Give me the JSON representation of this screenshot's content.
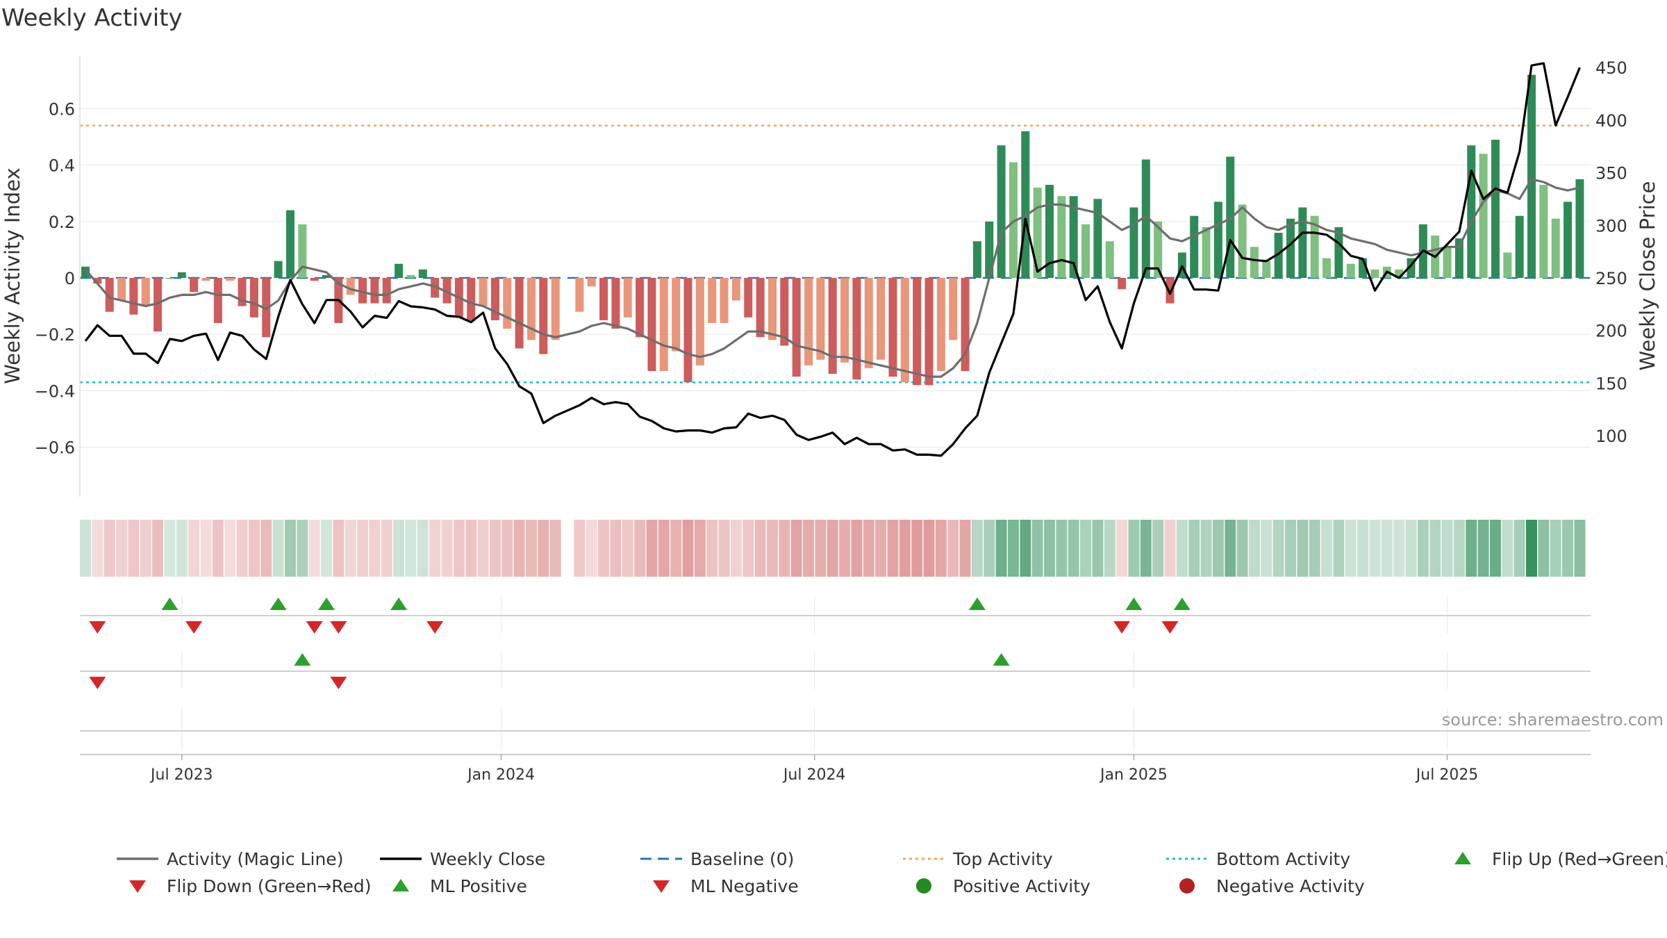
{
  "title": "Weekly Activity",
  "source": "source: sharemaestro.com",
  "colors": {
    "strong_green": "#2e8b57",
    "light_green": "#7fbf7f",
    "strong_red": "#cd5c5c",
    "light_red": "#e9967a",
    "magic_line": "#6e6e6e",
    "close_line": "#000000",
    "baseline": "#1f77b4",
    "top_line": "#f4a460",
    "bottom_line": "#17becf",
    "flip_up": "#2ca02c",
    "flip_down": "#d62728",
    "pos_dot": "#228b22",
    "neg_dot": "#b22222"
  },
  "chart_data": {
    "type": "bar",
    "y_left_label": "Weekly Activity Index",
    "y_right_label": "Weekly Close Price",
    "y_left_ticks": [
      0.6,
      0.4,
      0.2,
      0,
      -0.2,
      -0.4,
      -0.6
    ],
    "y_left_tick_labels": [
      "0.6",
      "0.4",
      "0.2",
      "0",
      "−0.2",
      "−0.4",
      "−0.6"
    ],
    "y_left_range": [
      -0.78,
      0.78
    ],
    "y_right_ticks": [
      450,
      400,
      350,
      300,
      250,
      200,
      150,
      100
    ],
    "y_right_range": [
      59,
      478
    ],
    "top_activity": 0.54,
    "bottom_activity": -0.37,
    "x_ticks": [
      {
        "week": 8,
        "label": "Jul 2023"
      },
      {
        "week": 34.5,
        "label": "Jan 2024"
      },
      {
        "week": 60.5,
        "label": "Jul 2024"
      },
      {
        "week": 87,
        "label": "Jan 2025"
      },
      {
        "week": 113,
        "label": "Jul 2025"
      }
    ],
    "activity": [
      0.04,
      -0.02,
      -0.12,
      -0.08,
      -0.13,
      -0.1,
      -0.19,
      0.0,
      0.02,
      -0.05,
      -0.01,
      -0.16,
      -0.01,
      -0.1,
      -0.14,
      -0.21,
      0.06,
      0.24,
      0.19,
      -0.01,
      0.01,
      -0.16,
      -0.06,
      -0.09,
      -0.09,
      -0.09,
      0.05,
      0.01,
      0.03,
      -0.07,
      -0.09,
      -0.14,
      -0.15,
      -0.1,
      -0.15,
      -0.18,
      -0.25,
      -0.22,
      -0.27,
      -0.22,
      null,
      -0.12,
      -0.03,
      -0.15,
      -0.18,
      -0.14,
      -0.21,
      -0.33,
      -0.33,
      -0.26,
      -0.37,
      -0.31,
      -0.16,
      -0.16,
      -0.08,
      -0.14,
      -0.21,
      -0.22,
      -0.24,
      -0.35,
      -0.31,
      -0.29,
      -0.34,
      -0.3,
      -0.36,
      -0.32,
      -0.29,
      -0.35,
      -0.37,
      -0.38,
      -0.38,
      -0.33,
      -0.22,
      -0.33,
      0.13,
      0.2,
      0.47,
      0.41,
      0.52,
      0.32,
      0.33,
      0.29,
      0.29,
      0.19,
      0.28,
      0.13,
      -0.04,
      0.25,
      0.42,
      0.2,
      -0.09,
      0.09,
      0.22,
      0.18,
      0.27,
      0.43,
      0.26,
      0.11,
      0.06,
      0.16,
      0.21,
      0.25,
      0.22,
      0.07,
      0.18,
      0.05,
      0.07,
      0.03,
      0.04,
      0.03,
      0.07,
      0.19,
      0.15,
      0.11,
      0.14,
      0.47,
      0.44,
      0.49,
      0.09,
      0.22,
      0.72,
      0.33,
      0.21,
      0.27,
      0.35
    ],
    "activity_strength": [
      "s",
      "s",
      "s",
      "l",
      "s",
      "l",
      "s",
      "l",
      "s",
      "s",
      "l",
      "s",
      "l",
      "s",
      "s",
      "s",
      "s",
      "s",
      "l",
      "s",
      "s",
      "s",
      "l",
      "s",
      "s",
      "s",
      "s",
      "l",
      "s",
      "s",
      "s",
      "s",
      "s",
      "l",
      "s",
      "l",
      "s",
      "l",
      "s",
      "l",
      "n",
      "l",
      "l",
      "s",
      "s",
      "l",
      "s",
      "s",
      "l",
      "l",
      "s",
      "l",
      "l",
      "l",
      "l",
      "s",
      "s",
      "l",
      "s",
      "s",
      "l",
      "l",
      "s",
      "l",
      "s",
      "l",
      "l",
      "s",
      "l",
      "s",
      "s",
      "l",
      "l",
      "s",
      "s",
      "s",
      "s",
      "l",
      "s",
      "l",
      "s",
      "l",
      "s",
      "l",
      "s",
      "l",
      "s",
      "s",
      "s",
      "l",
      "s",
      "s",
      "s",
      "l",
      "s",
      "s",
      "l",
      "l",
      "l",
      "s",
      "s",
      "s",
      "l",
      "l",
      "s",
      "l",
      "s",
      "l",
      "l",
      "l",
      "s",
      "s",
      "l",
      "l",
      "s",
      "s",
      "l",
      "s",
      "l",
      "s",
      "s",
      "l",
      "l",
      "s",
      "s"
    ],
    "magic_line": [
      0.03,
      -0.02,
      -0.07,
      -0.08,
      -0.09,
      -0.1,
      -0.09,
      -0.07,
      -0.06,
      -0.06,
      -0.05,
      -0.06,
      -0.06,
      -0.08,
      -0.09,
      -0.11,
      -0.08,
      -0.01,
      0.04,
      0.03,
      0.02,
      -0.02,
      -0.04,
      -0.05,
      -0.06,
      -0.06,
      -0.04,
      -0.03,
      -0.02,
      -0.03,
      -0.05,
      -0.07,
      -0.09,
      -0.1,
      -0.12,
      -0.14,
      -0.16,
      -0.18,
      -0.2,
      -0.21,
      -0.2,
      -0.19,
      -0.17,
      -0.16,
      -0.17,
      -0.18,
      -0.2,
      -0.22,
      -0.24,
      -0.25,
      -0.27,
      -0.28,
      -0.27,
      -0.25,
      -0.22,
      -0.19,
      -0.19,
      -0.2,
      -0.21,
      -0.24,
      -0.25,
      -0.26,
      -0.28,
      -0.28,
      -0.29,
      -0.3,
      -0.31,
      -0.32,
      -0.33,
      -0.34,
      -0.35,
      -0.35,
      -0.32,
      -0.27,
      -0.16,
      0.0,
      0.16,
      0.2,
      0.22,
      0.25,
      0.26,
      0.26,
      0.25,
      0.24,
      0.23,
      0.2,
      0.17,
      0.19,
      0.22,
      0.18,
      0.14,
      0.13,
      0.15,
      0.17,
      0.19,
      0.21,
      0.25,
      0.21,
      0.18,
      0.17,
      0.19,
      0.2,
      0.19,
      0.17,
      0.16,
      0.14,
      0.13,
      0.12,
      0.1,
      0.09,
      0.08,
      0.09,
      0.1,
      0.11,
      0.11,
      0.2,
      0.27,
      0.31,
      0.3,
      0.28,
      0.35,
      0.34,
      0.32,
      0.31,
      0.32
    ],
    "weekly_close": [
      190,
      205,
      195,
      195,
      178,
      178,
      169,
      192,
      190,
      195,
      197,
      172,
      198,
      195,
      182,
      173,
      213,
      248,
      225,
      207,
      229,
      229,
      218,
      203,
      214,
      212,
      228,
      223,
      222,
      220,
      214,
      213,
      208,
      217,
      183,
      168,
      147,
      140,
      112,
      119,
      124,
      129,
      136,
      130,
      132,
      130,
      118,
      114,
      107,
      104,
      105,
      105,
      103,
      107,
      108,
      121,
      117,
      119,
      115,
      101,
      96,
      99,
      103,
      92,
      98,
      92,
      92,
      86,
      87,
      82,
      82,
      81,
      92,
      107,
      119,
      160,
      188,
      216,
      306,
      256,
      264,
      267,
      264,
      229,
      242,
      208,
      183,
      226,
      259,
      259,
      235,
      261,
      239,
      239,
      238,
      286,
      269,
      267,
      266,
      273,
      282,
      293,
      293,
      291,
      283,
      271,
      268,
      238,
      256,
      250,
      262,
      276,
      270,
      282,
      294,
      352,
      325,
      335,
      331,
      370,
      452,
      454,
      395,
      422,
      450
    ],
    "flip_up_weeks": [
      7,
      16,
      20,
      26,
      74,
      87,
      91
    ],
    "flip_down_weeks": [
      1,
      9,
      19,
      21,
      29,
      86,
      90
    ],
    "ml_positive_weeks": [
      18,
      76
    ],
    "ml_negative_weeks": [
      1,
      21
    ],
    "legend": [
      {
        "label": "Activity (Magic Line)",
        "kind": "line-solid-gray"
      },
      {
        "label": "Weekly Close",
        "kind": "line-solid-black"
      },
      {
        "label": "Baseline (0)",
        "kind": "line-dashed-blue"
      },
      {
        "label": "Top Activity",
        "kind": "line-dotted-orange"
      },
      {
        "label": "Bottom Activity",
        "kind": "line-dotted-cyan"
      },
      {
        "label": "Flip Up (Red→Green)",
        "kind": "triangle-up"
      },
      {
        "label": "Flip Down (Green→Red)",
        "kind": "triangle-down"
      },
      {
        "label": "ML Positive",
        "kind": "triangle-up"
      },
      {
        "label": "ML Negative",
        "kind": "triangle-down"
      },
      {
        "label": "Positive Activity",
        "kind": "dot-green"
      },
      {
        "label": "Negative Activity",
        "kind": "dot-red"
      }
    ]
  }
}
